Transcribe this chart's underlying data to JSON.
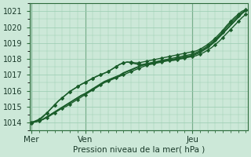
{
  "title": "",
  "xlabel": "Pression niveau de la mer( hPa )",
  "ylabel": "",
  "bg_color": "#cce8d8",
  "grid_color": "#99ccb0",
  "line_color": "#1a5c2a",
  "ylim": [
    1013.5,
    1021.5
  ],
  "yticks": [
    1014,
    1015,
    1016,
    1017,
    1018,
    1019,
    1020,
    1021
  ],
  "day_labels": [
    "Mer",
    "Ven",
    "Jeu"
  ],
  "day_positions": [
    0,
    14,
    42
  ],
  "n_points": 57,
  "series": [
    {
      "y": [
        1014.0,
        1014.05,
        1014.1,
        1014.2,
        1014.3,
        1014.45,
        1014.6,
        1014.75,
        1014.9,
        1015.0,
        1015.15,
        1015.3,
        1015.45,
        1015.6,
        1015.75,
        1015.9,
        1016.05,
        1016.2,
        1016.35,
        1016.5,
        1016.6,
        1016.7,
        1016.8,
        1016.9,
        1017.0,
        1017.1,
        1017.2,
        1017.3,
        1017.4,
        1017.5,
        1017.6,
        1017.65,
        1017.7,
        1017.75,
        1017.8,
        1017.85,
        1017.9,
        1017.9,
        1017.95,
        1018.0,
        1018.05,
        1018.1,
        1018.15,
        1018.2,
        1018.3,
        1018.4,
        1018.55,
        1018.7,
        1018.9,
        1019.1,
        1019.35,
        1019.6,
        1019.85,
        1020.1,
        1020.35,
        1020.6,
        1020.8
      ],
      "marker": true,
      "lw": 1.0,
      "markevery": 2
    },
    {
      "y": [
        1014.0,
        1014.05,
        1014.1,
        1014.2,
        1014.35,
        1014.5,
        1014.65,
        1014.8,
        1014.95,
        1015.1,
        1015.25,
        1015.4,
        1015.55,
        1015.7,
        1015.8,
        1015.95,
        1016.1,
        1016.25,
        1016.4,
        1016.55,
        1016.65,
        1016.75,
        1016.85,
        1016.95,
        1017.1,
        1017.2,
        1017.3,
        1017.4,
        1017.5,
        1017.6,
        1017.65,
        1017.7,
        1017.75,
        1017.8,
        1017.85,
        1017.9,
        1017.9,
        1017.95,
        1018.0,
        1018.05,
        1018.1,
        1018.15,
        1018.2,
        1018.3,
        1018.4,
        1018.55,
        1018.7,
        1018.9,
        1019.1,
        1019.35,
        1019.6,
        1019.85,
        1020.1,
        1020.35,
        1020.6,
        1020.85,
        1021.05
      ],
      "marker": false,
      "lw": 1.0,
      "markevery": 2
    },
    {
      "y": [
        1014.0,
        1014.05,
        1014.1,
        1014.2,
        1014.35,
        1014.5,
        1014.65,
        1014.8,
        1014.95,
        1015.1,
        1015.25,
        1015.4,
        1015.55,
        1015.7,
        1015.82,
        1015.97,
        1016.12,
        1016.27,
        1016.42,
        1016.57,
        1016.67,
        1016.77,
        1016.87,
        1016.97,
        1017.12,
        1017.22,
        1017.32,
        1017.42,
        1017.52,
        1017.62,
        1017.67,
        1017.72,
        1017.77,
        1017.82,
        1017.87,
        1017.92,
        1017.92,
        1017.97,
        1018.02,
        1018.07,
        1018.12,
        1018.17,
        1018.22,
        1018.32,
        1018.42,
        1018.57,
        1018.72,
        1018.92,
        1019.12,
        1019.37,
        1019.62,
        1019.87,
        1020.12,
        1020.37,
        1020.62,
        1020.87,
        1021.07
      ],
      "marker": false,
      "lw": 1.2,
      "markevery": 2
    },
    {
      "y": [
        1014.0,
        1014.1,
        1014.2,
        1014.4,
        1014.6,
        1014.85,
        1015.1,
        1015.35,
        1015.55,
        1015.75,
        1015.95,
        1016.1,
        1016.25,
        1016.4,
        1016.52,
        1016.65,
        1016.78,
        1016.9,
        1017.0,
        1017.1,
        1017.2,
        1017.35,
        1017.5,
        1017.65,
        1017.75,
        1017.8,
        1017.8,
        1017.75,
        1017.75,
        1017.8,
        1017.85,
        1017.9,
        1017.95,
        1018.0,
        1018.05,
        1018.1,
        1018.15,
        1018.2,
        1018.25,
        1018.3,
        1018.35,
        1018.4,
        1018.45,
        1018.5,
        1018.6,
        1018.75,
        1018.9,
        1019.1,
        1019.3,
        1019.55,
        1019.8,
        1020.1,
        1020.35,
        1020.6,
        1020.8,
        1021.0,
        1021.1
      ],
      "marker": true,
      "lw": 1.0,
      "markevery": 2
    },
    {
      "y": [
        1013.95,
        1014.05,
        1014.15,
        1014.35,
        1014.6,
        1014.85,
        1015.1,
        1015.35,
        1015.55,
        1015.75,
        1015.95,
        1016.1,
        1016.25,
        1016.4,
        1016.52,
        1016.65,
        1016.78,
        1016.9,
        1017.0,
        1017.1,
        1017.2,
        1017.35,
        1017.5,
        1017.65,
        1017.75,
        1017.8,
        1017.75,
        1017.7,
        1017.65,
        1017.65,
        1017.7,
        1017.75,
        1017.8,
        1017.85,
        1017.9,
        1017.95,
        1018.0,
        1018.05,
        1018.1,
        1018.15,
        1018.2,
        1018.25,
        1018.3,
        1018.4,
        1018.5,
        1018.65,
        1018.8,
        1019.0,
        1019.2,
        1019.45,
        1019.7,
        1020.0,
        1020.25,
        1020.5,
        1020.7,
        1020.9,
        1021.05
      ],
      "marker": true,
      "lw": 1.0,
      "markevery": 2
    }
  ]
}
